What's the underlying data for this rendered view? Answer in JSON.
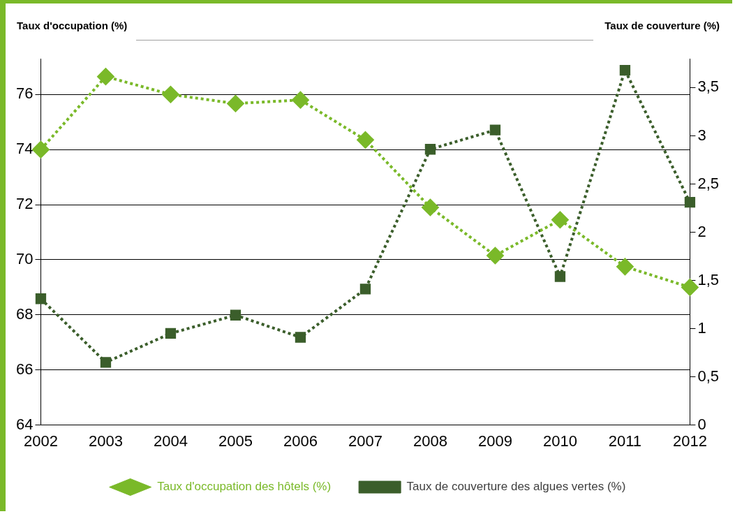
{
  "chart_data": {
    "type": "line",
    "ylabel": "Taux d'occupation (%)",
    "y2label": "Taux de couverture (%)",
    "categories": [
      "2002",
      "2003",
      "2004",
      "2005",
      "2006",
      "2007",
      "2008",
      "2009",
      "2010",
      "2011",
      "2012"
    ],
    "series": [
      {
        "name": "Taux d'occupation des hôtels (%)",
        "color": "#7ab929",
        "marker": "diamond",
        "values": [
          74.0,
          76.65,
          76.0,
          75.67,
          75.8,
          74.35,
          71.9,
          70.15,
          71.45,
          69.75,
          69.0
        ]
      },
      {
        "name": "Taux de couverture des algues vertes (%)",
        "color": "#3b5e2b",
        "marker": "square",
        "axis": "y2",
        "values": [
          1.31,
          0.65,
          0.95,
          1.14,
          0.91,
          1.41,
          2.86,
          3.06,
          1.54,
          3.68,
          2.31
        ]
      }
    ],
    "ylim": [
      64,
      77.3
    ],
    "yticks": [
      64,
      66,
      68,
      70,
      72,
      74,
      76
    ],
    "y2lim": [
      0,
      3.8
    ],
    "y2ticks": [
      0,
      {
        "value": 0.5,
        "label": "0,5"
      },
      1,
      {
        "value": 1.5,
        "label": "1,5"
      },
      2,
      {
        "value": 2.5,
        "label": "2,5"
      },
      3,
      {
        "value": 3.5,
        "label": "3,5"
      }
    ],
    "grid": "y",
    "legend": "bottom",
    "line_style": "dotted"
  }
}
